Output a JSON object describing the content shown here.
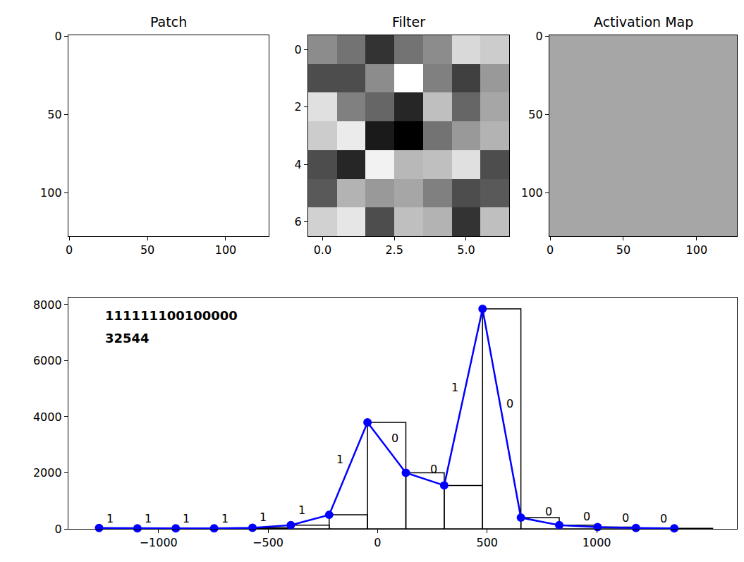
{
  "chart_data": [
    {
      "type": "image",
      "title": "Patch",
      "color": "#ffffff",
      "xlim": [
        -0.5,
        127.5
      ],
      "ylim": [
        127.5,
        -0.5
      ],
      "xticks": [
        0,
        50,
        100
      ],
      "yticks": [
        0,
        50,
        100
      ]
    },
    {
      "type": "heatmap",
      "title": "Filter",
      "color": "gray",
      "cells": [
        [
          0.55,
          0.45,
          0.2,
          0.45,
          0.55,
          0.85,
          0.8
        ],
        [
          0.3,
          0.3,
          0.55,
          1.0,
          0.5,
          0.25,
          0.6
        ],
        [
          0.88,
          0.5,
          0.4,
          0.15,
          0.75,
          0.4,
          0.65
        ],
        [
          0.8,
          0.92,
          0.1,
          0.0,
          0.45,
          0.6,
          0.7
        ],
        [
          0.3,
          0.15,
          0.95,
          0.72,
          0.75,
          0.88,
          0.3
        ],
        [
          0.35,
          0.7,
          0.6,
          0.65,
          0.5,
          0.3,
          0.35
        ],
        [
          0.82,
          0.9,
          0.3,
          0.75,
          0.7,
          0.2,
          0.75
        ]
      ],
      "xlim": [
        -0.5,
        6.5
      ],
      "ylim": [
        6.5,
        -0.5
      ],
      "xticks": [
        {
          "value": 0,
          "label": "0.0"
        },
        {
          "value": 2.5,
          "label": "2.5"
        },
        {
          "value": 5,
          "label": "5.0"
        }
      ],
      "yticks": [
        0,
        2,
        4,
        6
      ]
    },
    {
      "type": "image",
      "title": "Activation Map",
      "color": "#a6a6a6",
      "xlim": [
        -0.5,
        127.5
      ],
      "ylim": [
        127.5,
        -0.5
      ],
      "xticks": [
        0,
        50,
        100
      ],
      "yticks": [
        0,
        50,
        100
      ]
    },
    {
      "type": "histogram",
      "color": "#0000ff",
      "marker": "circle",
      "line_style": "solid",
      "annotations": [
        "111111100100000",
        "32544"
      ],
      "bins": [
        -1271,
        -1096,
        -921,
        -746,
        -571,
        -396,
        -221,
        -46,
        129,
        304,
        479,
        654,
        829,
        1004,
        1179,
        1354,
        1529
      ],
      "values": [
        30,
        20,
        20,
        20,
        40,
        130,
        500,
        3800,
        2000,
        1550,
        7850,
        400,
        130,
        60,
        30,
        20
      ],
      "xlim": [
        -1411,
        1640
      ],
      "ylim": [
        0,
        8250
      ],
      "xticks": [
        -1000,
        -500,
        0,
        500,
        1000
      ],
      "yticks": [
        0,
        2000,
        4000,
        6000,
        8000
      ]
    }
  ]
}
